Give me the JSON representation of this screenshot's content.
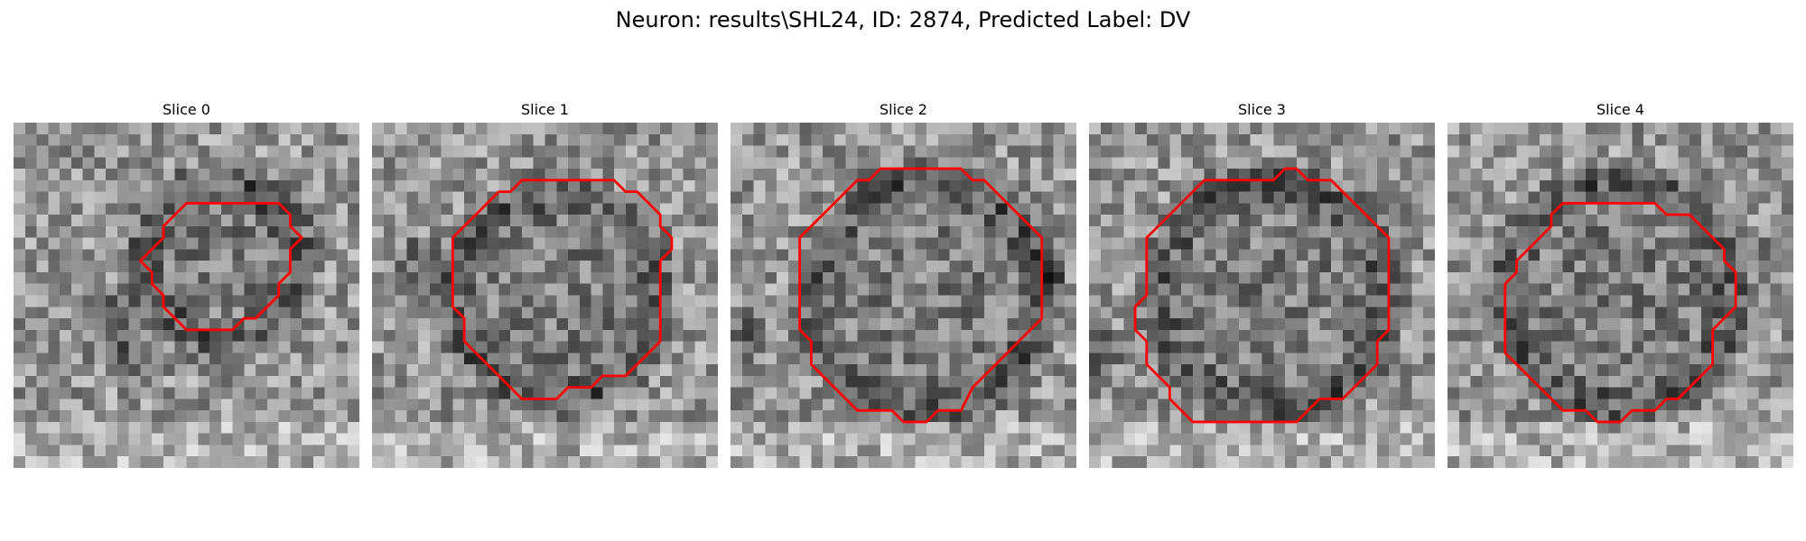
{
  "figure": {
    "title": "Neuron: results\\SHL24, ID: 2874, Predicted Label: DV"
  },
  "panels": [
    {
      "title": "Slice 0"
    },
    {
      "title": "Slice 1"
    },
    {
      "title": "Slice 2"
    },
    {
      "title": "Slice 3"
    },
    {
      "title": "Slice 4"
    }
  ],
  "colors": {
    "contour": "#ff0000",
    "colormap": "grayscale"
  }
}
